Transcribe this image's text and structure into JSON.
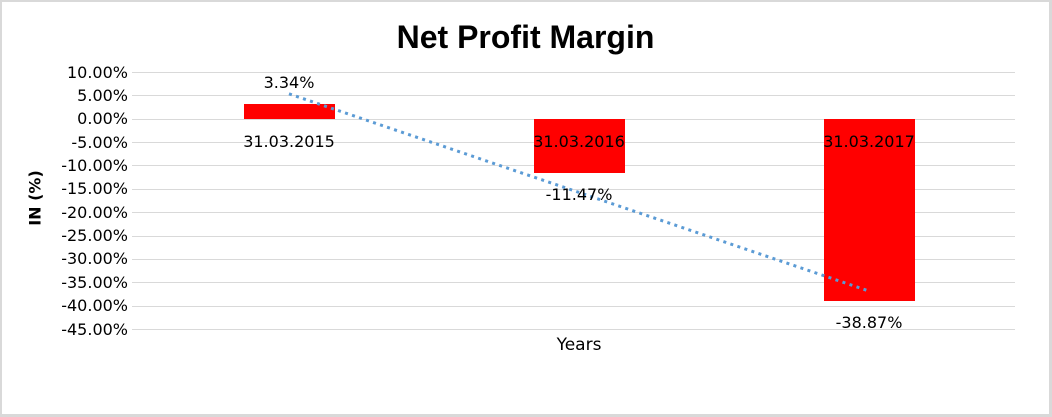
{
  "chart_data": {
    "type": "bar",
    "title": "Net Profit Margin",
    "xlabel": "Years",
    "ylabel": "IN (%)",
    "categories": [
      "31.03.2015",
      "31.03.2016",
      "31.03.2017"
    ],
    "values": [
      3.34,
      -11.47,
      -38.87
    ],
    "value_labels": [
      "3.34%",
      "-11.47%",
      "-38.87%"
    ],
    "ylim": [
      -45,
      10
    ],
    "yticks": [
      {
        "value": 10,
        "label": "10.00%"
      },
      {
        "value": 5,
        "label": "5.00%"
      },
      {
        "value": 0,
        "label": "0.00%"
      },
      {
        "value": -5,
        "label": "-5.00%"
      },
      {
        "value": -10,
        "label": "-10.00%"
      },
      {
        "value": -15,
        "label": "-15.00%"
      },
      {
        "value": -20,
        "label": "-20.00%"
      },
      {
        "value": -25,
        "label": "-25.00%"
      },
      {
        "value": -30,
        "label": "-30.00%"
      },
      {
        "value": -35,
        "label": "-35.00%"
      },
      {
        "value": -40,
        "label": "-40.00%"
      },
      {
        "value": -45,
        "label": "-45.00%"
      }
    ],
    "grid": true,
    "legend_position": "none",
    "trendline": {
      "type": "linear",
      "style": "dotted"
    },
    "colors": {
      "bar": "#FF0000",
      "trendline": "#5B9BD5",
      "gridline": "#D9D9D9",
      "text": "#000000",
      "frame_border": "#D9D9D9",
      "background": "#FFFFFF"
    }
  }
}
